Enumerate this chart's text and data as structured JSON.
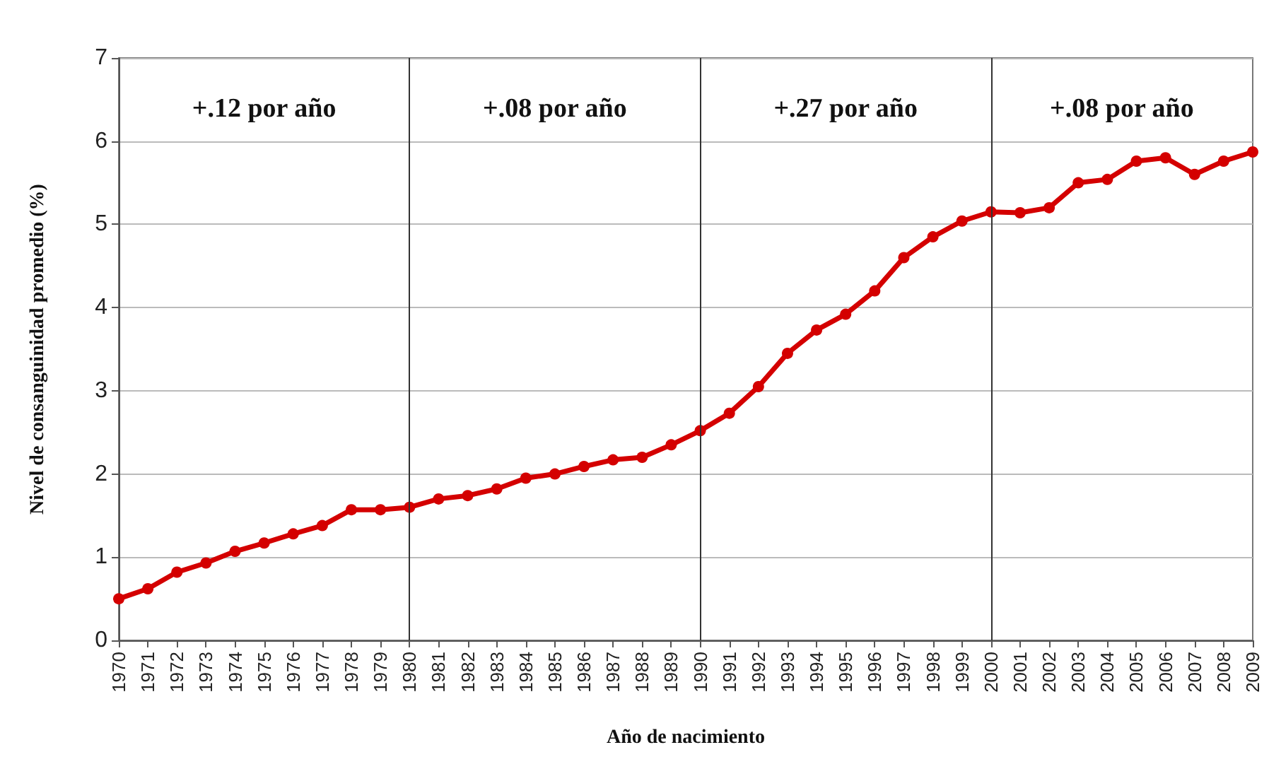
{
  "chart_data": {
    "type": "line",
    "xlabel": "Año de nacimiento",
    "ylabel": "Nivel de consanguinidad promedio (%)",
    "categories": [
      "1970",
      "1971",
      "1972",
      "1973",
      "1974",
      "1975",
      "1976",
      "1977",
      "1978",
      "1979",
      "1980",
      "1981",
      "1982",
      "1983",
      "1984",
      "1985",
      "1986",
      "1987",
      "1988",
      "1989",
      "1990",
      "1991",
      "1992",
      "1993",
      "1994",
      "1995",
      "1996",
      "1997",
      "1998",
      "1999",
      "2000",
      "2001",
      "2002",
      "2003",
      "2004",
      "2005",
      "2006",
      "2007",
      "2008",
      "2009"
    ],
    "series": [
      {
        "color": "#d40000",
        "values": [
          0.5,
          0.62,
          0.82,
          0.93,
          1.07,
          1.17,
          1.28,
          1.38,
          1.57,
          1.57,
          1.6,
          1.7,
          1.74,
          1.82,
          1.95,
          2.0,
          2.09,
          2.17,
          2.2,
          2.35,
          2.52,
          2.73,
          3.05,
          3.45,
          3.73,
          3.92,
          4.2,
          4.6,
          4.85,
          5.04,
          5.15,
          5.14,
          5.2,
          5.5,
          5.54,
          5.76,
          5.8,
          5.6,
          5.76,
          5.87
        ]
      }
    ],
    "ylim": [
      0,
      7
    ],
    "yticks": [
      0,
      1,
      2,
      3,
      4,
      5,
      6,
      7
    ],
    "ref_lines": [
      {
        "axis": "x",
        "value": "1980",
        "color": "#333333"
      },
      {
        "axis": "x",
        "value": "1990",
        "color": "#333333"
      },
      {
        "axis": "x",
        "value": "2000",
        "color": "#333333"
      }
    ],
    "annotations": [
      "+.12 por año",
      "+.08 por año",
      "+.27 por año",
      "+.08 por año"
    ],
    "grid": "y",
    "marker": "circle",
    "line_style": "solid"
  }
}
